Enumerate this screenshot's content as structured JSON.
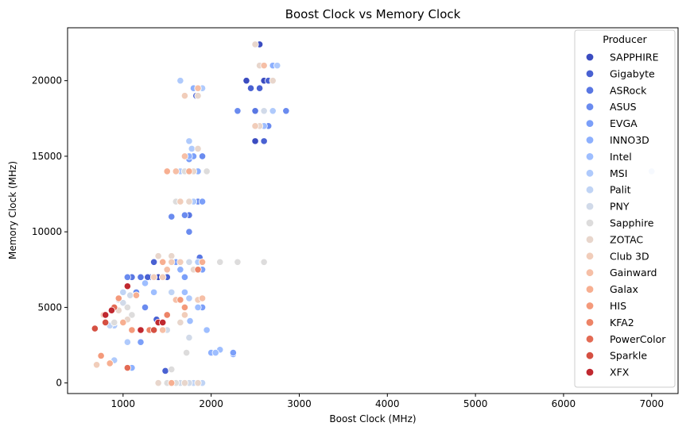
{
  "chart_data": {
    "type": "scatter",
    "title": "Boost Clock vs Memory Clock",
    "xlabel": "Boost Clock (MHz)",
    "ylabel": "Memory Clock (MHz)",
    "xlim": [
      370,
      7300
    ],
    "ylim": [
      -700,
      23500
    ],
    "xticks": [
      1000,
      2000,
      3000,
      4000,
      5000,
      6000,
      7000
    ],
    "yticks": [
      0,
      5000,
      10000,
      15000,
      20000
    ],
    "grid": false,
    "legend": {
      "title": "Producer",
      "placement": "upper right"
    },
    "series": [
      {
        "name": "SAPPHIRE",
        "color": "#3b4cc0",
        "points": [
          [
            1300,
            7000
          ],
          [
            1400,
            7000
          ],
          [
            1500,
            7000
          ],
          [
            2400,
            20000
          ],
          [
            2600,
            20000
          ],
          [
            2500,
            16000
          ],
          [
            2550,
            22400
          ]
        ]
      },
      {
        "name": "Gigabyte",
        "color": "#4961d2",
        "points": [
          [
            1350,
            8000
          ],
          [
            1500,
            7000
          ],
          [
            2450,
            19500
          ],
          [
            2550,
            19500
          ],
          [
            2650,
            20000
          ],
          [
            2600,
            16000
          ],
          [
            1800,
            15000
          ],
          [
            1830,
            19000
          ],
          [
            1480,
            800
          ],
          [
            1380,
            4200
          ],
          [
            1280,
            7000
          ]
        ]
      },
      {
        "name": "ASRock",
        "color": "#5977e3",
        "points": [
          [
            1600,
            12000
          ],
          [
            1650,
            12000
          ],
          [
            1750,
            11100
          ],
          [
            2500,
            18000
          ],
          [
            1200,
            7000
          ],
          [
            1100,
            7000
          ],
          [
            1870,
            8300
          ],
          [
            1450,
            7000
          ]
        ]
      },
      {
        "name": "ASUS",
        "color": "#6a8bef",
        "points": [
          [
            1550,
            11000
          ],
          [
            1700,
            11100
          ],
          [
            2300,
            18000
          ],
          [
            2850,
            18000
          ],
          [
            2650,
            17000
          ],
          [
            1750,
            10000
          ],
          [
            1050,
            7000
          ],
          [
            1150,
            6000
          ],
          [
            1250,
            5000
          ],
          [
            1850,
            12000
          ],
          [
            1900,
            15000
          ]
        ]
      },
      {
        "name": "EVGA",
        "color": "#7b9ff9",
        "points": [
          [
            1750,
            14800
          ],
          [
            1800,
            15000
          ],
          [
            1900,
            12000
          ],
          [
            1600,
            8000
          ],
          [
            1700,
            7000
          ],
          [
            1200,
            2700
          ],
          [
            1900,
            5000
          ],
          [
            2250,
            1900
          ],
          [
            2250,
            2000
          ],
          [
            1500,
            3500
          ],
          [
            1900,
            7500
          ]
        ]
      },
      {
        "name": "INNO3D",
        "color": "#8db0fe",
        "points": [
          [
            1750,
            15000
          ],
          [
            1850,
            14000
          ],
          [
            2700,
            21000
          ],
          [
            2600,
            18000
          ],
          [
            2000,
            2000
          ],
          [
            1100,
            1000
          ],
          [
            800,
            4000
          ],
          [
            1800,
            19500
          ],
          [
            1650,
            7500
          ]
        ]
      },
      {
        "name": "Intel",
        "color": "#9ebeff",
        "points": [
          [
            2100,
            2200
          ],
          [
            2050,
            2000
          ],
          [
            1950,
            3500
          ],
          [
            2600,
            17000
          ],
          [
            1760,
            4100
          ],
          [
            1850,
            5000
          ],
          [
            1350,
            6000
          ],
          [
            1250,
            6600
          ],
          [
            1700,
            6000
          ]
        ]
      },
      {
        "name": "MSI",
        "color": "#afcafc",
        "points": [
          [
            1750,
            16000
          ],
          [
            1780,
            15500
          ],
          [
            1900,
            19500
          ],
          [
            2750,
            21000
          ],
          [
            2700,
            18000
          ],
          [
            1650,
            14000
          ],
          [
            1800,
            12000
          ],
          [
            1850,
            8000
          ],
          [
            1750,
            5600
          ],
          [
            900,
            1500
          ],
          [
            1050,
            2700
          ],
          [
            900,
            3800
          ],
          [
            1650,
            20000
          ]
        ]
      },
      {
        "name": "Palit",
        "color": "#c0d4f5",
        "points": [
          [
            7000,
            14000
          ],
          [
            1900,
            0
          ],
          [
            1800,
            0
          ],
          [
            1550,
            6000
          ],
          [
            1350,
            7000
          ],
          [
            1950,
            14000
          ],
          [
            850,
            3800
          ],
          [
            1150,
            5800
          ],
          [
            1850,
            19500
          ],
          [
            1000,
            6000
          ]
        ]
      },
      {
        "name": "PNY",
        "color": "#d1dae9",
        "points": [
          [
            1650,
            0
          ],
          [
            1750,
            0
          ],
          [
            1500,
            3500
          ],
          [
            950,
            5500
          ],
          [
            1080,
            5800
          ],
          [
            1750,
            3000
          ],
          [
            1750,
            8000
          ],
          [
            2600,
            18000
          ],
          [
            1000,
            5300
          ]
        ]
      },
      {
        "name": "Sapphire",
        "color": "#dddcdc",
        "points": [
          [
            1500,
            0
          ],
          [
            1600,
            0
          ],
          [
            1550,
            900
          ],
          [
            1720,
            2000
          ],
          [
            2100,
            8000
          ],
          [
            2300,
            8000
          ],
          [
            2600,
            8000
          ],
          [
            1600,
            12000
          ],
          [
            1700,
            14000
          ],
          [
            1050,
            5000
          ],
          [
            1100,
            4500
          ],
          [
            900,
            4000
          ],
          [
            2550,
            21000
          ],
          [
            1950,
            14000
          ]
        ]
      },
      {
        "name": "ZOTAC",
        "color": "#e8d6cc",
        "points": [
          [
            1400,
            0
          ],
          [
            1700,
            0
          ],
          [
            1850,
            0
          ],
          [
            1850,
            19000
          ],
          [
            2500,
            22400
          ],
          [
            2550,
            21000
          ],
          [
            2700,
            20000
          ],
          [
            2550,
            17000
          ],
          [
            1500,
            14000
          ],
          [
            1800,
            14000
          ],
          [
            1750,
            12000
          ],
          [
            1850,
            15500
          ],
          [
            1800,
            7500
          ],
          [
            1400,
            8400
          ],
          [
            1550,
            8400
          ],
          [
            1650,
            4000
          ],
          [
            950,
            4800
          ],
          [
            1050,
            4200
          ]
        ]
      },
      {
        "name": "Club 3D",
        "color": "#f1cdba",
        "points": [
          [
            1350,
            7000
          ],
          [
            1450,
            7000
          ],
          [
            1550,
            8000
          ],
          [
            1650,
            8000
          ],
          [
            1700,
            19000
          ],
          [
            2500,
            17000
          ],
          [
            1650,
            12000
          ],
          [
            1850,
            5500
          ],
          [
            1700,
            4500
          ],
          [
            700,
            1200
          ]
        ]
      },
      {
        "name": "Gainward",
        "color": "#f6bfa6",
        "points": [
          [
            1600,
            14000
          ],
          [
            1700,
            15000
          ],
          [
            1850,
            19500
          ],
          [
            2600,
            21000
          ],
          [
            1600,
            5500
          ],
          [
            1450,
            3500
          ],
          [
            1900,
            5600
          ],
          [
            850,
            1300
          ],
          [
            780,
            4500
          ],
          [
            1500,
            7500
          ]
        ]
      },
      {
        "name": "Galax",
        "color": "#f7af91",
        "points": [
          [
            1550,
            0
          ],
          [
            1500,
            14000
          ],
          [
            1750,
            14000
          ],
          [
            1900,
            8000
          ],
          [
            1450,
            8000
          ],
          [
            1200,
            3500
          ],
          [
            1000,
            4000
          ],
          [
            1150,
            5800
          ],
          [
            850,
            1300
          ]
        ]
      },
      {
        "name": "HIS",
        "color": "#f49a7b",
        "points": [
          [
            750,
            1800
          ],
          [
            1050,
            1000
          ],
          [
            1100,
            3500
          ],
          [
            950,
            5600
          ],
          [
            1650,
            5500
          ],
          [
            1700,
            5000
          ]
        ]
      },
      {
        "name": "KFA2",
        "color": "#ed8366",
        "points": [
          [
            1850,
            7500
          ],
          [
            1400,
            4000
          ],
          [
            1500,
            4500
          ],
          [
            1300,
            3500
          ]
        ]
      },
      {
        "name": "PowerColor",
        "color": "#e36b54",
        "points": [
          [
            1050,
            1000
          ],
          [
            1200,
            3500
          ],
          [
            900,
            5000
          ]
        ]
      },
      {
        "name": "Sparkle",
        "color": "#d55042",
        "points": [
          [
            680,
            3600
          ],
          [
            800,
            4000
          ],
          [
            1350,
            3500
          ]
        ]
      },
      {
        "name": "XFX",
        "color": "#c0282f",
        "points": [
          [
            800,
            4500
          ],
          [
            870,
            4800
          ],
          [
            1050,
            6400
          ],
          [
            1200,
            3500
          ],
          [
            1400,
            4000
          ],
          [
            1450,
            4000
          ]
        ]
      }
    ]
  }
}
